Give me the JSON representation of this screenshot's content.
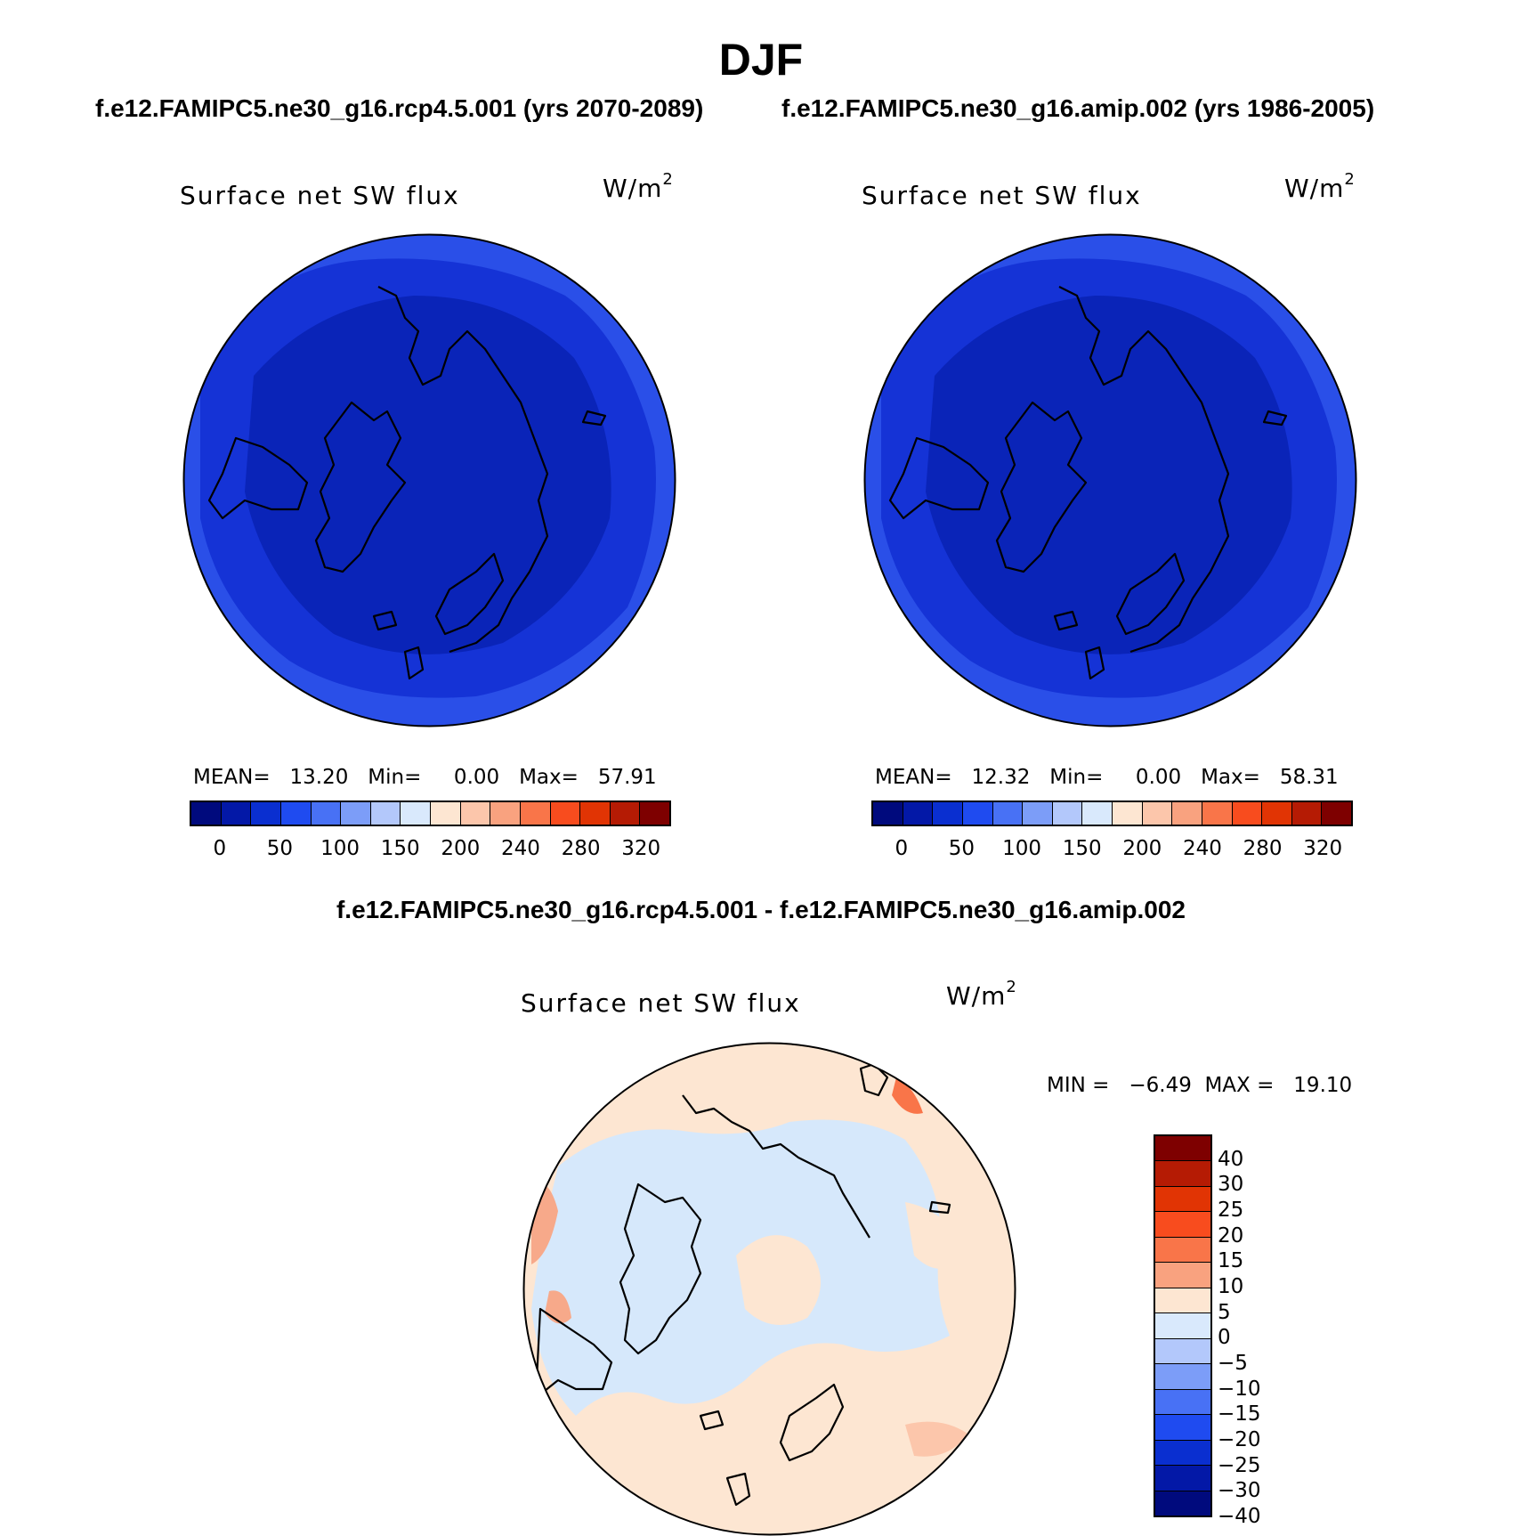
{
  "title": "DJF",
  "case1_title": "f.e12.FAMIPC5.ne30_g16.rcp4.5.001 (yrs 2070-2089)",
  "case2_title": "f.e12.FAMIPC5.ne30_g16.amip.002 (yrs 1986-2005)",
  "diff_title": "f.e12.FAMIPC5.ne30_g16.rcp4.5.001 - f.e12.FAMIPC5.ne30_g16.amip.002",
  "variable_label": "Surface net SW flux",
  "units_base": "W/m",
  "units_exp": "2",
  "colors": {
    "field_dark": "#0a24b8",
    "field_mid": "#1533d6",
    "field_light": "#2a4fe8",
    "diff_pos": "#fde6d2",
    "diff_neg": "#d6e8fb",
    "diff_pos_strong": "#f7a98a"
  },
  "panel1": {
    "stats": "MEAN=   13.20   Min=     0.00   Max=   57.91"
  },
  "panel2": {
    "stats": "MEAN=   12.32   Min=     0.00   Max=   58.31"
  },
  "diff_panel": {
    "stats": "MIN =   −6.49  MAX =   19.10"
  },
  "abs_colorbar": {
    "colors": [
      "#000a7d",
      "#0318a7",
      "#0a2fd0",
      "#1f4bf0",
      "#4871f5",
      "#7c9df8",
      "#b3c8fb",
      "#d9e9fc",
      "#fde6d2",
      "#fcc6ab",
      "#f9a27f",
      "#f97549",
      "#f84c1e",
      "#e13404",
      "#b51b04",
      "#7e0000"
    ],
    "labels": [
      "0",
      "50",
      "100",
      "150",
      "200",
      "240",
      "280",
      "320"
    ]
  },
  "diff_colorbar": {
    "colors": [
      "#7e0000",
      "#b51b04",
      "#e13404",
      "#f84c1e",
      "#f97549",
      "#f9a27f",
      "#fde6d2",
      "#d9e9fc",
      "#b3c8fb",
      "#7c9df8",
      "#4871f5",
      "#1f4bf0",
      "#0a2fd0",
      "#0318a7",
      "#000a7d"
    ],
    "labels": [
      "40",
      "30",
      "25",
      "20",
      "15",
      "10",
      "5",
      "0",
      "−5",
      "−10",
      "−15",
      "−20",
      "−25",
      "−30",
      "−40"
    ]
  }
}
